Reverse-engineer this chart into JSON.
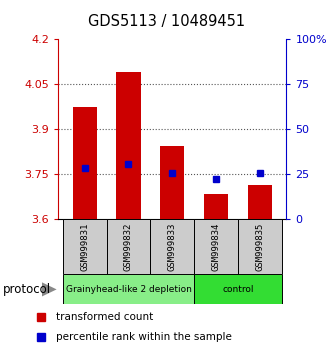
{
  "title": "GDS5113 / 10489451",
  "samples": [
    "GSM999831",
    "GSM999832",
    "GSM999833",
    "GSM999834",
    "GSM999835"
  ],
  "bar_tops": [
    3.975,
    4.09,
    3.845,
    3.685,
    3.715
  ],
  "bar_bottom": 3.6,
  "percentile_values": [
    3.77,
    3.785,
    3.755,
    3.735,
    3.755
  ],
  "ylim": [
    3.6,
    4.2
  ],
  "y_ticks_left": [
    3.6,
    3.75,
    3.9,
    4.05,
    4.2
  ],
  "y_ticks_right_pct": [
    "0",
    "25",
    "50",
    "75",
    "100%"
  ],
  "y_ticks_right_vals": [
    3.6,
    3.75,
    3.9,
    4.05,
    4.2
  ],
  "bar_color": "#cc0000",
  "percentile_color": "#0000cc",
  "groups": [
    {
      "label": "Grainyhead-like 2 depletion",
      "indices": [
        0,
        1,
        2
      ],
      "color": "#88ee88"
    },
    {
      "label": "control",
      "indices": [
        3,
        4
      ],
      "color": "#33dd33"
    }
  ],
  "group_row_label": "protocol",
  "legend_bar_label": "transformed count",
  "legend_pct_label": "percentile rank within the sample",
  "left_axis_color": "#cc0000",
  "right_axis_color": "#0000cc",
  "dotted_line_color": "#555555",
  "sample_box_color": "#cccccc",
  "bar_width": 0.55,
  "title_fontsize": 10.5
}
